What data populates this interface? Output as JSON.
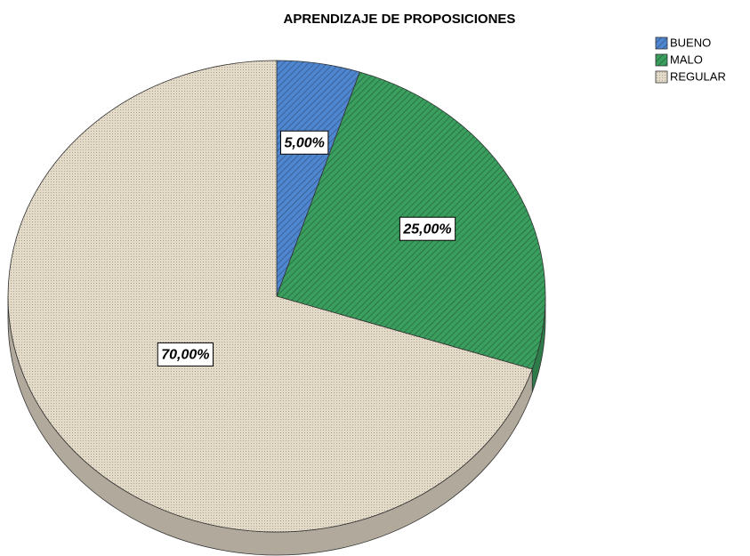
{
  "chart_data": {
    "type": "pie",
    "title": "APRENDIZAJE DE PROPOSICIONES",
    "categories": [
      "BUENO",
      "MALO",
      "REGULAR"
    ],
    "values": [
      5,
      25,
      70
    ],
    "value_labels": [
      "5,00%",
      "25,00%",
      "70,00%"
    ],
    "colors": [
      "#4f86d0",
      "#3a9e5e",
      "#e3dac8"
    ],
    "legend": "top-right"
  }
}
